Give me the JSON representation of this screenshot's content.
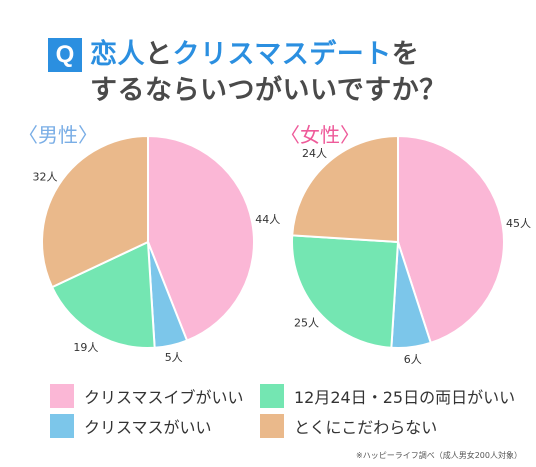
{
  "badge": "Q",
  "title": {
    "line1_highlight1": "恋人",
    "line1_plain1": "と",
    "line1_highlight2": "クリスマスデート",
    "line1_plain2": "を",
    "line2": "するならいつがいいですか？"
  },
  "chart_data": [
    {
      "type": "pie",
      "title": "〈男性〉",
      "title_color": "#7aaee6",
      "slices": [
        {
          "label": "44人",
          "value": 44,
          "color": "#fbb7d6"
        },
        {
          "label": "5人",
          "value": 5,
          "color": "#7cc6ea"
        },
        {
          "label": "19人",
          "value": 19,
          "color": "#74e6b2"
        },
        {
          "label": "32人",
          "value": 32,
          "color": "#eab98b"
        }
      ]
    },
    {
      "type": "pie",
      "title": "〈女性〉",
      "title_color": "#ee5b9a",
      "slices": [
        {
          "label": "45人",
          "value": 45,
          "color": "#fbb7d6"
        },
        {
          "label": "6人",
          "value": 6,
          "color": "#7cc6ea"
        },
        {
          "label": "25人",
          "value": 25,
          "color": "#74e6b2"
        },
        {
          "label": "24人",
          "value": 24,
          "color": "#eab98b"
        }
      ]
    }
  ],
  "legend": [
    {
      "label": "クリスマスイブがいい",
      "color": "#fbb7d6"
    },
    {
      "label": "12月24日・25日の両日がいい",
      "color": "#74e6b2"
    },
    {
      "label": "クリスマスがいい",
      "color": "#7cc6ea"
    },
    {
      "label": "とくにこだわらない",
      "color": "#eab98b"
    }
  ],
  "footnote": "※ハッピーライフ調べ（成人男女200人対象）"
}
